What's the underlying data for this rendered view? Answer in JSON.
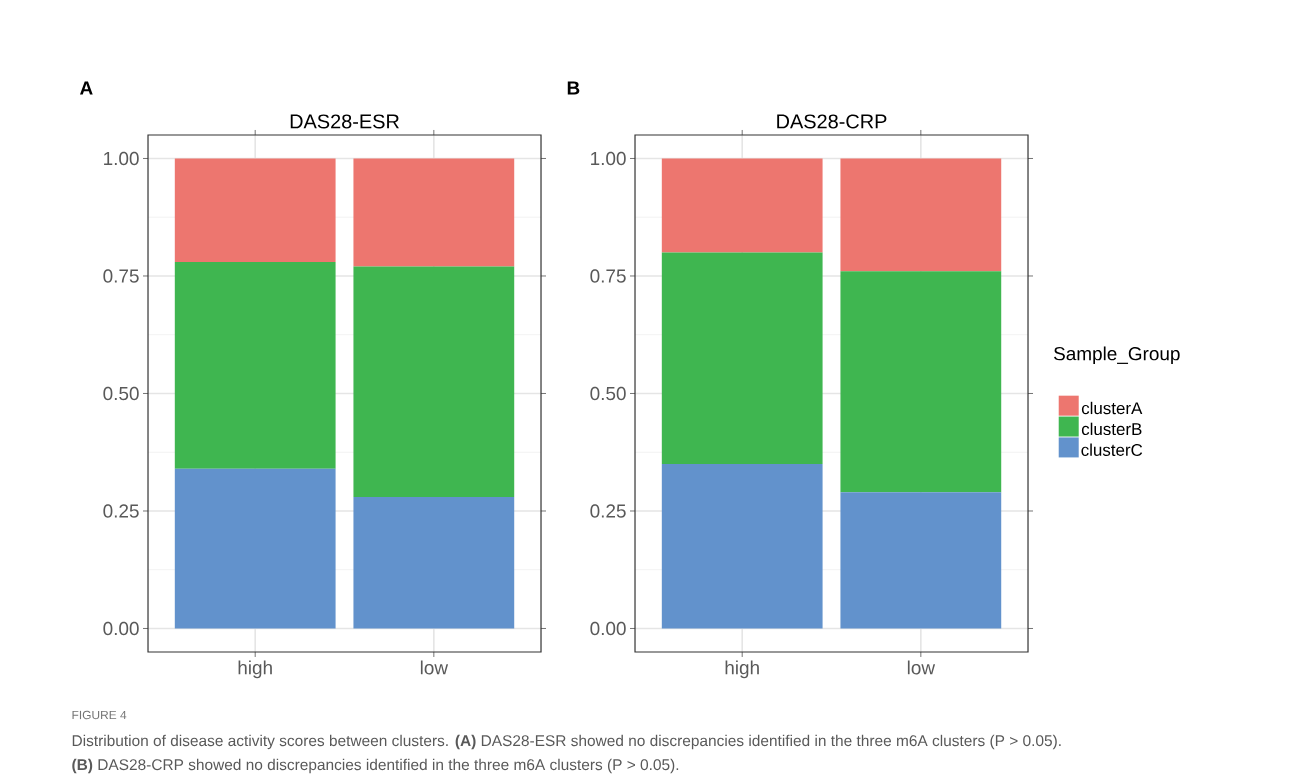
{
  "chart_data": [
    {
      "type": "bar",
      "title": "DAS28-ESR",
      "stacked": true,
      "categories": [
        "high",
        "low"
      ],
      "series": [
        {
          "color": "#6292cc",
          "values": [
            0.34,
            0.28
          ]
        },
        {
          "color": "#3fb650",
          "values": [
            0.44,
            0.49
          ]
        },
        {
          "color": "#ed766f",
          "values": [
            0.22,
            0.23
          ]
        }
      ],
      "ylim": [
        -0.05,
        1.05
      ],
      "yticks": [
        {
          "value": 0,
          "label": "0.00"
        },
        {
          "value": 0.25,
          "label": "0.25"
        },
        {
          "value": 0.5,
          "label": "0.50"
        },
        {
          "value": 0.75,
          "label": "0.75"
        },
        {
          "value": 1,
          "label": "1.00"
        }
      ],
      "grid": true,
      "legend": false,
      "annotations": [
        "A",
        "FIGURE 4",
        "Distribution of disease activity scores between clusters. **(A)** DAS28-ESR showed no discrepancies identified in the three m6A clusters (P > 0.05).",
        "**(B)** DAS28-CRP showed no discrepancies identified in the three m6A clusters (P > 0.05)."
      ]
    },
    {
      "type": "bar",
      "title": "DAS28-CRP",
      "stacked": true,
      "categories": [
        "high",
        "low"
      ],
      "legend_title": "Sample_Group",
      "series": [
        {
          "name": "clusterC",
          "color": "#6292cc",
          "values": [
            0.35,
            0.29
          ]
        },
        {
          "name": "clusterB",
          "color": "#3fb650",
          "values": [
            0.45,
            0.47
          ]
        },
        {
          "name": "clusterA",
          "color": "#ed766f",
          "values": [
            0.2,
            0.24
          ]
        }
      ],
      "ylim": [
        -0.05,
        1.05
      ],
      "yticks": [
        {
          "value": 0,
          "label": "0.00"
        },
        {
          "value": 0.25,
          "label": "0.25"
        },
        {
          "value": 0.5,
          "label": "0.50"
        },
        {
          "value": 0.75,
          "label": "0.75"
        },
        {
          "value": 1,
          "label": "1.00"
        }
      ],
      "grid": true,
      "legend": "right",
      "annotations": [
        "B"
      ]
    }
  ]
}
